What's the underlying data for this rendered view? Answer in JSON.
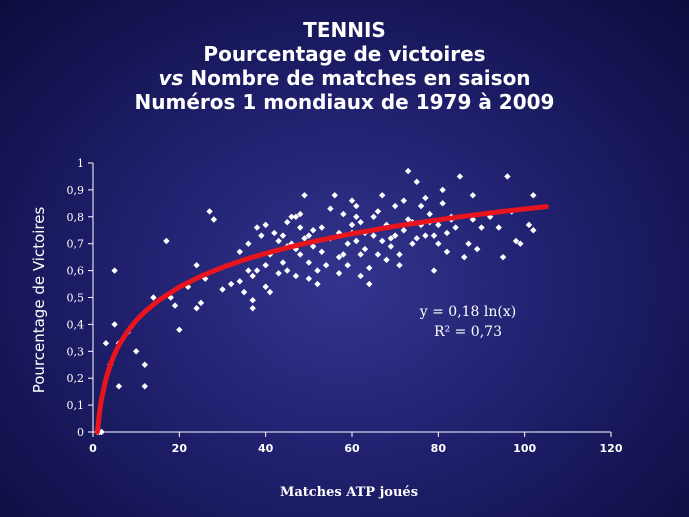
{
  "chart_data": {
    "type": "scatter",
    "title_lines": [
      {
        "lead": "",
        "rest": "TENNIS"
      },
      {
        "lead": "",
        "rest": "Pourcentage de victoires"
      },
      {
        "lead": "vs",
        "rest": " Nombre de matches en saison"
      },
      {
        "lead": "",
        "rest": "Numéros 1 mondiaux de 1979 à 2009"
      }
    ],
    "xlabel": "Matches ATP joués",
    "ylabel": "Pourcentage de Victoires",
    "xlim": [
      0,
      120
    ],
    "ylim": [
      0,
      1
    ],
    "x_ticks": [
      0,
      20,
      40,
      60,
      80,
      100,
      120
    ],
    "x_tick_labels": [
      "0",
      "20",
      "40",
      "60",
      "80",
      "100",
      "120"
    ],
    "y_ticks": [
      0,
      0.1,
      0.2,
      0.3,
      0.4,
      0.5,
      0.6,
      0.7,
      0.8,
      0.9,
      1
    ],
    "y_tick_labels": [
      "0",
      "0,1",
      "0,2",
      "0,3",
      "0,4",
      "0,5",
      "0,6",
      "0,7",
      "0,8",
      "0,9",
      "1"
    ],
    "grid": false,
    "legend": "none",
    "colors": {
      "points": "#ffffff",
      "trendline": "#e8141e",
      "axes": "#ffffff",
      "text": "#ffffff"
    },
    "trendline": {
      "model": "logarithmic",
      "equation_label": "y = 0,18 ln(x)",
      "r2_label": "R² = 0,73",
      "x_range": [
        1,
        105
      ],
      "points": [
        [
          1,
          0
        ],
        [
          1.5,
          0.073
        ],
        [
          2,
          0.125
        ],
        [
          3,
          0.198
        ],
        [
          4,
          0.25
        ],
        [
          5,
          0.29
        ],
        [
          6,
          0.323
        ],
        [
          8,
          0.374
        ],
        [
          10,
          0.415
        ],
        [
          12,
          0.447
        ],
        [
          15,
          0.487
        ],
        [
          20,
          0.539
        ],
        [
          25,
          0.579
        ],
        [
          30,
          0.612
        ],
        [
          35,
          0.64
        ],
        [
          40,
          0.664
        ],
        [
          45,
          0.685
        ],
        [
          50,
          0.704
        ],
        [
          55,
          0.721
        ],
        [
          60,
          0.737
        ],
        [
          65,
          0.751
        ],
        [
          70,
          0.765
        ],
        [
          75,
          0.777
        ],
        [
          80,
          0.789
        ],
        [
          85,
          0.8
        ],
        [
          90,
          0.81
        ],
        [
          95,
          0.82
        ],
        [
          100,
          0.829
        ],
        [
          105,
          0.838
        ]
      ]
    },
    "points": [
      [
        1,
        0
      ],
      [
        2,
        0
      ],
      [
        1.5,
        0
      ],
      [
        3,
        0.33
      ],
      [
        4,
        0.25
      ],
      [
        5,
        0.4
      ],
      [
        5,
        0.6
      ],
      [
        6,
        0.17
      ],
      [
        6,
        0.33
      ],
      [
        8,
        0.37
      ],
      [
        10,
        0.3
      ],
      [
        12,
        0.17
      ],
      [
        12,
        0.25
      ],
      [
        14,
        0.5
      ],
      [
        17,
        0.71
      ],
      [
        18,
        0.5
      ],
      [
        19,
        0.47
      ],
      [
        20,
        0.38
      ],
      [
        22,
        0.54
      ],
      [
        24,
        0.46
      ],
      [
        24,
        0.62
      ],
      [
        25,
        0.48
      ],
      [
        26,
        0.57
      ],
      [
        27,
        0.82
      ],
      [
        28,
        0.79
      ],
      [
        30,
        0.53
      ],
      [
        32,
        0.55
      ],
      [
        34,
        0.56
      ],
      [
        34,
        0.67
      ],
      [
        35,
        0.52
      ],
      [
        36,
        0.6
      ],
      [
        36,
        0.7
      ],
      [
        37,
        0.46
      ],
      [
        37,
        0.49
      ],
      [
        37,
        0.58
      ],
      [
        38,
        0.6
      ],
      [
        38,
        0.76
      ],
      [
        39,
        0.73
      ],
      [
        40,
        0.54
      ],
      [
        40,
        0.62
      ],
      [
        40,
        0.77
      ],
      [
        41,
        0.52
      ],
      [
        41,
        0.66
      ],
      [
        42,
        0.74
      ],
      [
        43,
        0.59
      ],
      [
        43,
        0.71
      ],
      [
        44,
        0.73
      ],
      [
        44,
        0.63
      ],
      [
        45,
        0.78
      ],
      [
        45,
        0.6
      ],
      [
        45,
        0.69
      ],
      [
        46,
        0.7
      ],
      [
        46,
        0.8
      ],
      [
        47,
        0.8
      ],
      [
        47,
        0.68
      ],
      [
        47,
        0.58
      ],
      [
        48,
        0.81
      ],
      [
        48,
        0.76
      ],
      [
        48,
        0.66
      ],
      [
        49,
        0.72
      ],
      [
        49,
        0.88
      ],
      [
        50,
        0.73
      ],
      [
        50,
        0.63
      ],
      [
        50,
        0.57
      ],
      [
        51,
        0.75
      ],
      [
        51,
        0.69
      ],
      [
        52,
        0.55
      ],
      [
        52,
        0.6
      ],
      [
        53,
        0.76
      ],
      [
        53,
        0.67
      ],
      [
        54,
        0.62
      ],
      [
        55,
        0.72
      ],
      [
        55,
        0.83
      ],
      [
        56,
        0.88
      ],
      [
        57,
        0.59
      ],
      [
        57,
        0.65
      ],
      [
        57,
        0.74
      ],
      [
        58,
        0.66
      ],
      [
        58,
        0.81
      ],
      [
        59,
        0.62
      ],
      [
        59,
        0.7
      ],
      [
        60,
        0.74
      ],
      [
        60,
        0.77
      ],
      [
        60,
        0.86
      ],
      [
        61,
        0.8
      ],
      [
        61,
        0.84
      ],
      [
        61,
        0.71
      ],
      [
        62,
        0.58
      ],
      [
        62,
        0.66
      ],
      [
        62,
        0.78
      ],
      [
        63,
        0.68
      ],
      [
        63,
        0.74
      ],
      [
        64,
        0.61
      ],
      [
        64,
        0.55
      ],
      [
        65,
        0.73
      ],
      [
        65,
        0.8
      ],
      [
        66,
        0.66
      ],
      [
        66,
        0.82
      ],
      [
        67,
        0.71
      ],
      [
        67,
        0.88
      ],
      [
        68,
        0.64
      ],
      [
        68,
        0.77
      ],
      [
        69,
        0.69
      ],
      [
        69,
        0.72
      ],
      [
        70,
        0.73
      ],
      [
        70,
        0.84
      ],
      [
        71,
        0.62
      ],
      [
        71,
        0.66
      ],
      [
        72,
        0.75
      ],
      [
        72,
        0.86
      ],
      [
        73,
        0.79
      ],
      [
        73,
        0.97
      ],
      [
        74,
        0.7
      ],
      [
        74,
        0.78
      ],
      [
        75,
        0.72
      ],
      [
        75,
        0.93
      ],
      [
        76,
        0.77
      ],
      [
        76,
        0.84
      ],
      [
        77,
        0.73
      ],
      [
        77,
        0.87
      ],
      [
        78,
        0.78
      ],
      [
        78,
        0.81
      ],
      [
        79,
        0.6
      ],
      [
        79,
        0.73
      ],
      [
        80,
        0.7
      ],
      [
        80,
        0.77
      ],
      [
        81,
        0.85
      ],
      [
        81,
        0.9
      ],
      [
        82,
        0.67
      ],
      [
        82,
        0.74
      ],
      [
        83,
        0.79
      ],
      [
        83,
        0.8
      ],
      [
        84,
        0.76
      ],
      [
        85,
        0.95
      ],
      [
        86,
        0.65
      ],
      [
        87,
        0.7
      ],
      [
        88,
        0.79
      ],
      [
        88,
        0.88
      ],
      [
        89,
        0.68
      ],
      [
        90,
        0.76
      ],
      [
        92,
        0.8
      ],
      [
        94,
        0.76
      ],
      [
        95,
        0.65
      ],
      [
        96,
        0.95
      ],
      [
        97,
        0.82
      ],
      [
        98,
        0.71
      ],
      [
        99,
        0.7
      ],
      [
        101,
        0.77
      ],
      [
        102,
        0.75
      ],
      [
        102,
        0.88
      ]
    ]
  }
}
